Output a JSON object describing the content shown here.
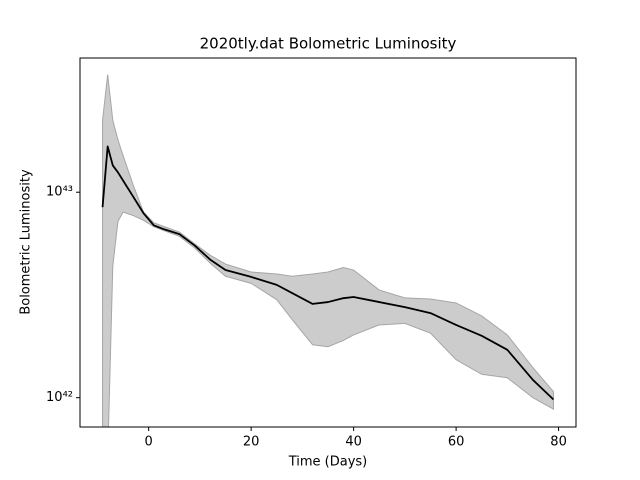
{
  "chart_data": {
    "type": "line",
    "title": "2020tly.dat Bolometric Luminosity",
    "x_label": "Time (Days)",
    "y_label": "Bolometric Luminosity",
    "yscale": "log",
    "x": [
      -9,
      -8,
      -7,
      -6,
      -5,
      -3,
      -1,
      1,
      3,
      6,
      9,
      12,
      15,
      20,
      25,
      28,
      32,
      35,
      38,
      40,
      45,
      50,
      55,
      60,
      65,
      70,
      75,
      79
    ],
    "series": [
      {
        "color": "#000000",
        "values": [
          8.46e+42,
          1.67e+43,
          1.35e+43,
          1.25e+43,
          1.14e+43,
          9.5e+42,
          7.9e+42,
          6.9e+42,
          6.6e+42,
          6.25e+42,
          5.5e+42,
          4.7e+42,
          4.18e+42,
          3.87e+42,
          3.54e+42,
          3.23e+42,
          2.86e+42,
          2.92e+42,
          3.05e+42,
          3.09e+42,
          2.92e+42,
          2.76e+42,
          2.58e+42,
          2.26e+42,
          2e+42,
          1.71e+42,
          1.22e+42,
          9.8e+41
        ]
      }
    ],
    "band": {
      "color": "#cccccc",
      "edge_color": "#a6a6a6",
      "lower": [
        5e+41,
        5e+41,
        4.37e+42,
        7.2e+42,
        8e+42,
        7.7e+42,
        7.3e+42,
        6.8e+42,
        6.5e+42,
        6.1e+42,
        5.35e+42,
        4.52e+42,
        3.9e+42,
        3.6e+42,
        3e+42,
        2.4e+42,
        1.81e+42,
        1.77e+42,
        1.9e+42,
        2.02e+42,
        2.26e+42,
        2.3e+42,
        2.06e+42,
        1.53e+42,
        1.3e+42,
        1.25e+42,
        1e+42,
        8.8e+41
      ],
      "upper": [
        2.24e+43,
        3.74e+43,
        2.24e+43,
        1.8e+43,
        1.51e+43,
        1.08e+43,
        8e+42,
        7.1e+42,
        6.8e+42,
        6.4e+42,
        5.6e+42,
        4.94e+42,
        4.47e+42,
        4.09e+42,
        4e+42,
        3.9e+42,
        4e+42,
        4.09e+42,
        4.3e+42,
        4.18e+42,
        3.34e+42,
        3.06e+42,
        3.02e+42,
        2.89e+42,
        2.5e+42,
        2.02e+42,
        1.4e+42,
        1.07e+42
      ]
    },
    "xlim": [
      -13.4,
      83.4
    ],
    "xticks": [
      0,
      20,
      40,
      60,
      80
    ],
    "ylim": [
      7.2e+41,
      4.5e+43
    ],
    "yticks": [
      {
        "value": 1e+42,
        "label": "10⁴²"
      },
      {
        "value": 1e+43,
        "label": "10⁴³"
      }
    ]
  }
}
